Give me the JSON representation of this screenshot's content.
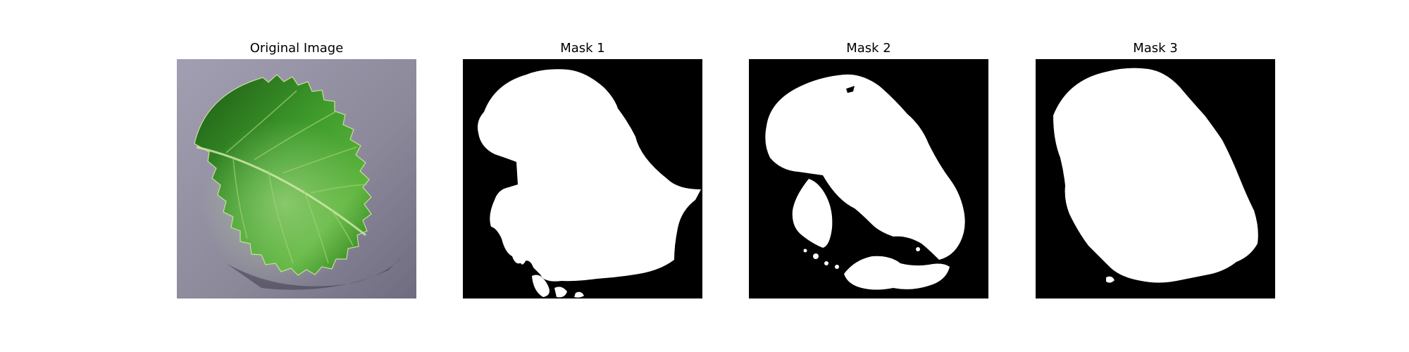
{
  "panels": [
    {
      "title": "Original Image",
      "image": "leaf-photo"
    },
    {
      "title": "Mask 1",
      "image": "mask-image"
    },
    {
      "title": "Mask 2",
      "image": "mask-image"
    },
    {
      "title": "Mask 3",
      "image": "mask-image"
    }
  ],
  "colors": {
    "mask_background": "#000000",
    "mask_foreground": "#ffffff",
    "photo_background": "#8d8a9b",
    "leaf_green": "#3e9a2a",
    "leaf_dark": "#1f5e16"
  }
}
